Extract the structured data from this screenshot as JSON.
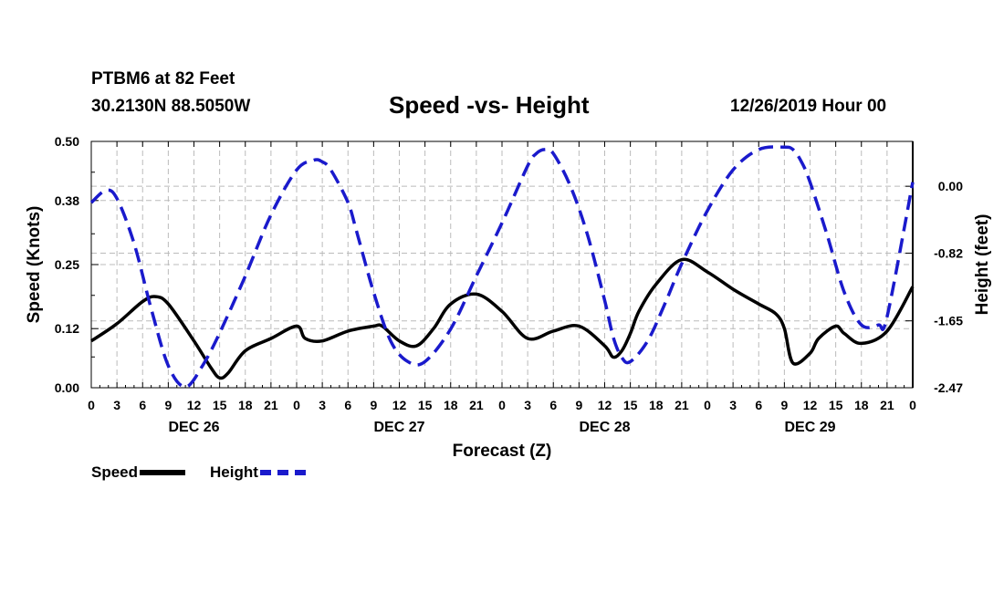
{
  "header": {
    "station": "PTBM6 at 82 Feet",
    "location": "30.2130N 88.5050W",
    "title": "Speed -vs- Height",
    "date": "12/26/2019 Hour 00"
  },
  "legend": {
    "speed": "Speed",
    "height": "Height"
  },
  "colors": {
    "speed": "#000000",
    "height": "#1a1acc",
    "grid": "#bbbbbb"
  },
  "chart_data": {
    "type": "line",
    "title": "Speed -vs- Height",
    "xlabel": "Forecast (Z)",
    "ylabel": "Speed (Knots)",
    "y2label": "Height (feet)",
    "xlim": [
      0,
      96
    ],
    "ylim": [
      0,
      0.5
    ],
    "y2lim": [
      -2.47,
      0.55
    ],
    "y_ticks": [
      0.0,
      0.12,
      0.25,
      0.38,
      0.5
    ],
    "y_tick_labels": [
      "0.00",
      "0.12",
      "0.25",
      "0.38",
      "0.50"
    ],
    "y2_ticks": [
      0.0,
      -0.82,
      -1.65,
      -2.47
    ],
    "y2_tick_labels": [
      "0.00",
      "-0.82",
      "-1.65",
      "-2.47"
    ],
    "x_ticks": [
      0,
      3,
      6,
      9,
      12,
      15,
      18,
      21,
      24,
      27,
      30,
      33,
      36,
      39,
      42,
      45,
      48,
      51,
      54,
      57,
      60,
      63,
      66,
      69,
      72,
      75,
      78,
      81,
      84,
      87,
      90,
      93,
      96
    ],
    "x_tick_labels": [
      "0",
      "3",
      "6",
      "9",
      "12",
      "15",
      "18",
      "21",
      "0",
      "3",
      "6",
      "9",
      "12",
      "15",
      "18",
      "21",
      "0",
      "3",
      "6",
      "9",
      "12",
      "15",
      "18",
      "21",
      "0",
      "3",
      "6",
      "9",
      "12",
      "15",
      "18",
      "21",
      "0"
    ],
    "day_labels": [
      {
        "x": 12,
        "label": "DEC 26"
      },
      {
        "x": 36,
        "label": "DEC 27"
      },
      {
        "x": 60,
        "label": "DEC 28"
      },
      {
        "x": 84,
        "label": "DEC 29"
      }
    ],
    "grid": true,
    "series": [
      {
        "name": "Speed",
        "axis": "left",
        "style": "solid",
        "x": [
          0,
          3,
          6,
          7.5,
          9,
          12,
          14,
          15,
          16,
          18,
          21,
          24,
          25,
          27,
          30,
          33,
          34,
          36,
          38,
          40,
          42,
          45,
          48,
          51,
          54,
          57,
          60,
          61,
          62,
          63,
          64,
          66,
          69,
          72,
          75,
          78,
          80,
          81,
          82,
          84,
          85,
          87,
          88,
          90,
          93,
          96
        ],
        "y": [
          0.095,
          0.13,
          0.175,
          0.185,
          0.17,
          0.095,
          0.04,
          0.02,
          0.03,
          0.075,
          0.1,
          0.125,
          0.1,
          0.095,
          0.115,
          0.125,
          0.125,
          0.095,
          0.085,
          0.12,
          0.17,
          0.19,
          0.155,
          0.1,
          0.115,
          0.125,
          0.085,
          0.062,
          0.075,
          0.11,
          0.155,
          0.21,
          0.26,
          0.235,
          0.2,
          0.17,
          0.15,
          0.12,
          0.05,
          0.07,
          0.1,
          0.125,
          0.11,
          0.09,
          0.115,
          0.205
        ]
      },
      {
        "name": "Height",
        "axis": "right",
        "style": "dashed",
        "x": [
          0,
          1.7,
          3,
          5,
          7,
          9,
          11,
          13,
          15,
          18,
          21,
          24,
          26,
          27,
          28,
          30,
          31,
          33,
          35,
          37,
          39,
          42,
          45,
          48,
          51,
          52,
          53,
          54,
          56,
          58,
          60,
          61,
          62,
          63,
          65,
          67,
          69,
          72,
          75,
          78,
          81,
          82,
          83,
          84,
          86,
          88,
          90,
          92,
          93,
          96
        ],
        "y": [
          -0.2,
          -0.05,
          -0.15,
          -0.7,
          -1.5,
          -2.2,
          -2.46,
          -2.2,
          -1.8,
          -1.1,
          -0.35,
          0.2,
          0.32,
          0.3,
          0.2,
          -0.2,
          -0.55,
          -1.3,
          -1.9,
          -2.15,
          -2.15,
          -1.75,
          -1.1,
          -0.45,
          0.25,
          0.4,
          0.45,
          0.4,
          0.0,
          -0.6,
          -1.4,
          -1.85,
          -2.1,
          -2.15,
          -1.9,
          -1.45,
          -0.95,
          -0.3,
          0.2,
          0.45,
          0.48,
          0.45,
          0.3,
          0.05,
          -0.6,
          -1.3,
          -1.7,
          -1.7,
          -1.6,
          0.05
        ]
      }
    ]
  }
}
